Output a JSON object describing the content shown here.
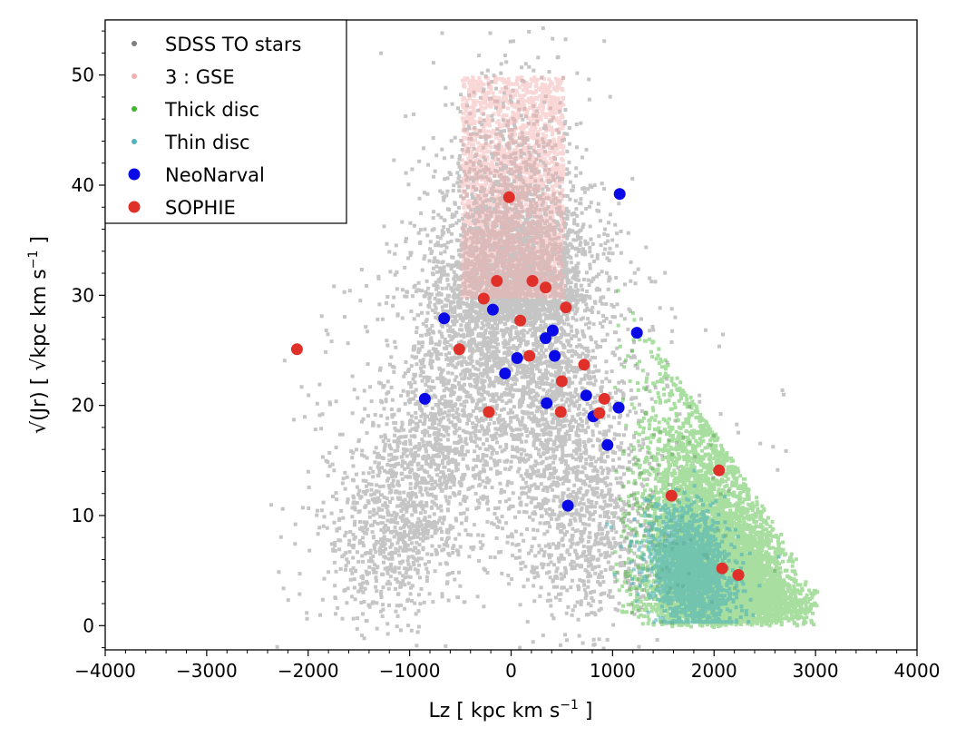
{
  "chart_data": {
    "type": "scatter",
    "xlabel": "Lz [ kpc km s",
    "xlabel_unit_sup": "−1",
    "xlabel_close": " ]",
    "ylabel": "√(Jr) [ √kpc km s",
    "ylabel_unit_sup": "−1",
    "ylabel_close": " ]",
    "xlim": [
      -4000,
      4000
    ],
    "ylim": [
      -2.2,
      55
    ],
    "x_ticks": [
      -4000,
      -3000,
      -2000,
      -1000,
      0,
      1000,
      2000,
      3000,
      4000
    ],
    "x_tick_labels": [
      "−4000",
      "−3000",
      "−2000",
      "−1000",
      "0",
      "1000",
      "2000",
      "3000",
      "4000"
    ],
    "y_ticks": [
      0,
      10,
      20,
      30,
      40,
      50
    ],
    "y_tick_labels": [
      "0",
      "10",
      "20",
      "30",
      "40",
      "50"
    ],
    "legend_position": "top-left",
    "legend": [
      {
        "label": "SDSS TO stars",
        "color": "#7f7f7f",
        "marker": "small"
      },
      {
        "label": "3 : GSE",
        "color": "#f4b0b0",
        "marker": "small"
      },
      {
        "label": "Thick disc",
        "color": "#3fb52c",
        "marker": "small"
      },
      {
        "label": "Thin disc",
        "color": "#4fb3b8",
        "marker": "small"
      },
      {
        "label": "NeoNarval",
        "color": "#0a0ae6",
        "marker": "large"
      },
      {
        "label": "SOPHIE",
        "color": "#e0302a",
        "marker": "large"
      }
    ],
    "density_populations": [
      {
        "name": "SDSS TO stars",
        "color": "#7f7f7f",
        "shape": "inverted-V",
        "apex": [
          0,
          34
        ],
        "left_foot": [
          -1300,
          4
        ],
        "right_foot": [
          900,
          4
        ],
        "x_range": [
          -3500,
          3300
        ],
        "y_range": [
          0,
          55
        ]
      },
      {
        "name": "3 : GSE",
        "color": "#f4b0b0",
        "selection_box": {
          "lz": [
            -500,
            500
          ],
          "sqrt_jr": [
            30,
            50
          ]
        }
      },
      {
        "name": "Thick disc",
        "color": "#3fb52c",
        "lz_min": 1000,
        "density_peak": [
          2000,
          3
        ],
        "x_range": [
          1000,
          3000
        ],
        "y_range": [
          0,
          33
        ]
      },
      {
        "name": "Thin disc",
        "color": "#4fb3b8",
        "density_peak": [
          1750,
          5
        ],
        "x_range": [
          1250,
          2350
        ],
        "y_range": [
          0,
          14
        ]
      }
    ],
    "series": [
      {
        "name": "NeoNarval",
        "color": "#0a0ae6",
        "points": [
          [
            1070,
            39.2
          ],
          [
            -660,
            27.9
          ],
          [
            -180,
            28.7
          ],
          [
            1240,
            26.6
          ],
          [
            340,
            26.1
          ],
          [
            410,
            26.8
          ],
          [
            60,
            24.3
          ],
          [
            430,
            24.5
          ],
          [
            -60,
            22.9
          ],
          [
            -850,
            20.6
          ],
          [
            350,
            20.2
          ],
          [
            740,
            20.9
          ],
          [
            810,
            19.0
          ],
          [
            1060,
            19.8
          ],
          [
            950,
            16.4
          ],
          [
            560,
            10.9
          ]
        ]
      },
      {
        "name": "SOPHIE",
        "color": "#e0302a",
        "points": [
          [
            -20,
            38.9
          ],
          [
            -140,
            31.3
          ],
          [
            210,
            31.3
          ],
          [
            340,
            30.7
          ],
          [
            -270,
            29.7
          ],
          [
            540,
            28.9
          ],
          [
            90,
            27.7
          ],
          [
            -2110,
            25.1
          ],
          [
            -510,
            25.1
          ],
          [
            180,
            24.5
          ],
          [
            720,
            23.7
          ],
          [
            500,
            22.2
          ],
          [
            920,
            20.6
          ],
          [
            -220,
            19.4
          ],
          [
            490,
            19.4
          ],
          [
            870,
            19.3
          ],
          [
            2050,
            14.1
          ],
          [
            1580,
            11.8
          ],
          [
            2080,
            5.2
          ],
          [
            2240,
            4.6
          ]
        ]
      }
    ]
  }
}
